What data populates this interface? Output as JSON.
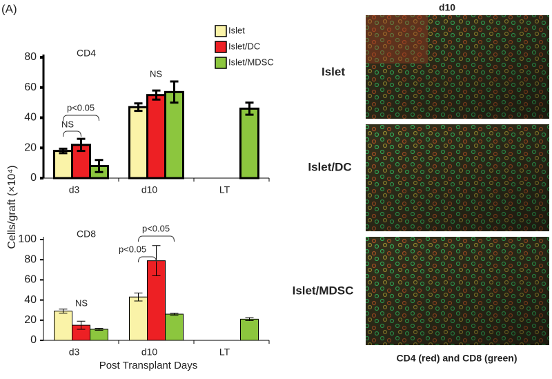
{
  "panel_label": "(A)",
  "chart_data": [
    {
      "type": "bar",
      "title": "CD4",
      "ylabel": "Cells/graft (×10⁴)",
      "categories": [
        "d3",
        "d10",
        "LT"
      ],
      "series": [
        {
          "name": "Islet",
          "color": "#faf3a8",
          "values": [
            18,
            47,
            null
          ],
          "errors": [
            1.5,
            2.5,
            null
          ]
        },
        {
          "name": "Islet/DC",
          "color": "#ed2024",
          "values": [
            22,
            55,
            null
          ],
          "errors": [
            4,
            3,
            null
          ]
        },
        {
          "name": "Islet/MDSC",
          "color": "#8cc63e",
          "values": [
            8,
            57,
            46
          ],
          "errors": [
            4,
            7,
            4
          ]
        }
      ],
      "ylim": [
        0,
        80
      ],
      "yticks": [
        0,
        20,
        40,
        60,
        80
      ],
      "legend": true,
      "annotations": [
        "NS",
        "p<0.05",
        "NS"
      ]
    },
    {
      "type": "bar",
      "title": "CD8",
      "xlabel": "Post Transplant Days",
      "categories": [
        "d3",
        "d10",
        "LT"
      ],
      "series": [
        {
          "name": "Islet",
          "color": "#faf3a8",
          "values": [
            29,
            43,
            null
          ],
          "errors": [
            2,
            4,
            null
          ]
        },
        {
          "name": "Islet/DC",
          "color": "#ed2024",
          "values": [
            15,
            79,
            null
          ],
          "errors": [
            4,
            15,
            null
          ]
        },
        {
          "name": "Islet/MDSC",
          "color": "#8cc63e",
          "values": [
            11,
            26,
            21
          ],
          "errors": [
            1,
            1,
            1.5
          ]
        }
      ],
      "ylim": [
        0,
        100
      ],
      "yticks": [
        0,
        20,
        40,
        60,
        80,
        100
      ],
      "legend": false,
      "annotations": [
        "NS",
        "p<0.05",
        "p<0.05"
      ]
    }
  ],
  "images": {
    "header": "d10",
    "labels": [
      "Islet",
      "Islet/DC",
      "Islet/MDSC"
    ],
    "caption": "CD4 (red) and CD8 (green)"
  }
}
